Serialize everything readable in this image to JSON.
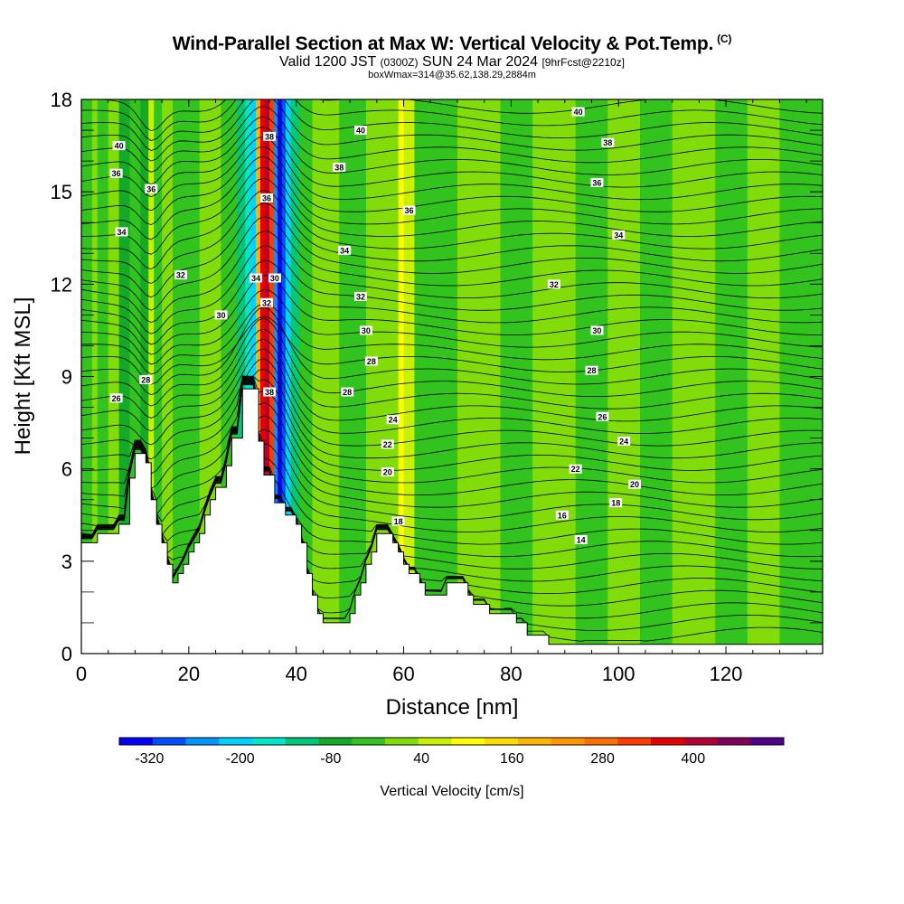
{
  "header": {
    "title": "Wind-Parallel Section at Max W: Vertical Velocity & Pot.Temp.",
    "title_mark": "(C)",
    "subtitle_main": "Valid 1200 JST",
    "subtitle_z": "(0300Z)",
    "subtitle_date": "SUN 24 Mar 2024",
    "subtitle_fcst": "[9hrFcst@2210z]",
    "subtitle2": "boxWmax=314@35.62,138.29,2884m"
  },
  "chart_data": {
    "type": "heatmap",
    "title": "Wind-Parallel Section at Max W: Vertical Velocity & Pot.Temp.",
    "xlabel": "Distance [nm]",
    "ylabel": "Height [Kft MSL]",
    "xlim": [
      0,
      138
    ],
    "ylim": [
      0,
      18
    ],
    "x_ticks": [
      0,
      20,
      40,
      60,
      80,
      100,
      120
    ],
    "y_ticks": [
      0,
      3,
      6,
      9,
      12,
      15,
      18
    ],
    "colorbar": {
      "label": "Vertical Velocity [cm/s]",
      "tick_values": [
        -320,
        -200,
        -80,
        40,
        160,
        280,
        400
      ],
      "min": -360,
      "max": 520,
      "colors": [
        "#0000ff",
        "#0050ff",
        "#0096ff",
        "#00d2ff",
        "#00e6c8",
        "#00c878",
        "#14aa28",
        "#32c31e",
        "#82dc0a",
        "#c8f000",
        "#ffff00",
        "#ffdc00",
        "#ffb400",
        "#ff9600",
        "#ff6e00",
        "#ff3c00",
        "#e60000",
        "#b40032",
        "#82005a",
        "#50008c"
      ]
    },
    "terrain": [
      [
        0,
        3.6
      ],
      [
        3,
        3.6
      ],
      [
        3,
        3.9
      ],
      [
        5,
        3.9
      ],
      [
        7,
        3.9
      ],
      [
        7,
        4.2
      ],
      [
        9,
        4.2
      ],
      [
        9,
        5.7
      ],
      [
        10,
        5.7
      ],
      [
        10,
        6.5
      ],
      [
        12,
        6.5
      ],
      [
        12,
        6.2
      ],
      [
        13,
        6.2
      ],
      [
        13,
        5.0
      ],
      [
        14,
        5.0
      ],
      [
        14,
        4.2
      ],
      [
        15,
        4.2
      ],
      [
        15,
        3.6
      ],
      [
        16,
        3.6
      ],
      [
        16,
        2.9
      ],
      [
        17,
        2.9
      ],
      [
        17,
        2.3
      ],
      [
        18,
        2.3
      ],
      [
        18,
        2.6
      ],
      [
        19,
        2.6
      ],
      [
        19,
        2.9
      ],
      [
        20,
        2.9
      ],
      [
        20,
        3.3
      ],
      [
        21,
        3.3
      ],
      [
        21,
        3.6
      ],
      [
        22,
        3.6
      ],
      [
        22,
        3.9
      ],
      [
        23,
        3.9
      ],
      [
        23,
        4.5
      ],
      [
        24,
        4.5
      ],
      [
        24,
        5.0
      ],
      [
        25,
        5.0
      ],
      [
        25,
        5.4
      ],
      [
        27,
        5.4
      ],
      [
        27,
        6.1
      ],
      [
        28,
        6.1
      ],
      [
        28,
        7.0
      ],
      [
        30,
        7.0
      ],
      [
        30,
        8.6
      ],
      [
        33,
        8.6
      ],
      [
        33,
        6.9
      ],
      [
        34,
        6.9
      ],
      [
        34,
        5.8
      ],
      [
        36,
        5.8
      ],
      [
        36,
        4.9
      ],
      [
        38,
        4.9
      ],
      [
        38,
        4.5
      ],
      [
        40,
        4.5
      ],
      [
        40,
        4.2
      ],
      [
        41,
        4.2
      ],
      [
        41,
        3.6
      ],
      [
        42,
        3.6
      ],
      [
        42,
        2.6
      ],
      [
        43,
        2.6
      ],
      [
        43,
        1.9
      ],
      [
        44,
        1.9
      ],
      [
        44,
        1.3
      ],
      [
        45,
        1.3
      ],
      [
        45,
        1.0
      ],
      [
        50,
        1.0
      ],
      [
        50,
        1.3
      ],
      [
        51,
        1.3
      ],
      [
        51,
        1.9
      ],
      [
        52,
        1.9
      ],
      [
        52,
        2.3
      ],
      [
        53,
        2.3
      ],
      [
        53,
        2.9
      ],
      [
        54,
        2.9
      ],
      [
        54,
        3.3
      ],
      [
        55,
        3.3
      ],
      [
        55,
        3.9
      ],
      [
        58,
        3.9
      ],
      [
        58,
        3.6
      ],
      [
        59,
        3.6
      ],
      [
        59,
        3.3
      ],
      [
        60,
        3.3
      ],
      [
        60,
        2.9
      ],
      [
        61,
        2.9
      ],
      [
        61,
        2.6
      ],
      [
        63,
        2.6
      ],
      [
        63,
        2.3
      ],
      [
        64,
        2.3
      ],
      [
        64,
        1.9
      ],
      [
        68,
        1.9
      ],
      [
        68,
        2.3
      ],
      [
        72,
        2.3
      ],
      [
        72,
        1.9
      ],
      [
        73,
        1.9
      ],
      [
        73,
        1.6
      ],
      [
        76,
        1.6
      ],
      [
        76,
        1.3
      ],
      [
        81,
        1.3
      ],
      [
        81,
        1.0
      ],
      [
        83,
        1.0
      ],
      [
        83,
        0.6
      ],
      [
        87,
        0.6
      ],
      [
        87,
        0.3
      ],
      [
        138,
        0.3
      ]
    ],
    "contour_labels": [
      {
        "text": "40",
        "x": 7,
        "y": 16.5
      },
      {
        "text": "36",
        "x": 6.5,
        "y": 15.6
      },
      {
        "text": "36",
        "x": 13,
        "y": 15.1
      },
      {
        "text": "34",
        "x": 7.5,
        "y": 13.7
      },
      {
        "text": "32",
        "x": 18.5,
        "y": 12.3
      },
      {
        "text": "30",
        "x": 26,
        "y": 11.0
      },
      {
        "text": "28",
        "x": 12,
        "y": 8.9
      },
      {
        "text": "26",
        "x": 6.5,
        "y": 8.3
      },
      {
        "text": "38",
        "x": 35,
        "y": 16.8
      },
      {
        "text": "36",
        "x": 34.5,
        "y": 14.8
      },
      {
        "text": "34",
        "x": 32.5,
        "y": 12.2
      },
      {
        "text": "30",
        "x": 36,
        "y": 12.2
      },
      {
        "text": "32",
        "x": 34.5,
        "y": 11.4
      },
      {
        "text": "38",
        "x": 35,
        "y": 8.5
      },
      {
        "text": "40",
        "x": 52,
        "y": 17.0
      },
      {
        "text": "38",
        "x": 48,
        "y": 15.8
      },
      {
        "text": "36",
        "x": 61,
        "y": 14.4
      },
      {
        "text": "34",
        "x": 49,
        "y": 13.1
      },
      {
        "text": "32",
        "x": 52,
        "y": 11.6
      },
      {
        "text": "30",
        "x": 53,
        "y": 10.5
      },
      {
        "text": "28",
        "x": 54,
        "y": 9.5
      },
      {
        "text": "28",
        "x": 49.5,
        "y": 8.5
      },
      {
        "text": "24",
        "x": 58,
        "y": 7.6
      },
      {
        "text": "22",
        "x": 57,
        "y": 6.8
      },
      {
        "text": "20",
        "x": 57,
        "y": 5.9
      },
      {
        "text": "18",
        "x": 59,
        "y": 4.3
      },
      {
        "text": "40",
        "x": 92.5,
        "y": 17.6
      },
      {
        "text": "38",
        "x": 98,
        "y": 16.6
      },
      {
        "text": "36",
        "x": 96,
        "y": 15.3
      },
      {
        "text": "34",
        "x": 100,
        "y": 13.6
      },
      {
        "text": "32",
        "x": 88,
        "y": 12.0
      },
      {
        "text": "30",
        "x": 96,
        "y": 10.5
      },
      {
        "text": "28",
        "x": 95,
        "y": 9.2
      },
      {
        "text": "26",
        "x": 97,
        "y": 7.7
      },
      {
        "text": "24",
        "x": 101,
        "y": 6.9
      },
      {
        "text": "22",
        "x": 92,
        "y": 6.0
      },
      {
        "text": "20",
        "x": 103,
        "y": 5.5
      },
      {
        "text": "18",
        "x": 99.5,
        "y": 4.9
      },
      {
        "text": "16",
        "x": 89.5,
        "y": 4.5
      },
      {
        "text": "14",
        "x": 93,
        "y": 3.7
      }
    ]
  }
}
